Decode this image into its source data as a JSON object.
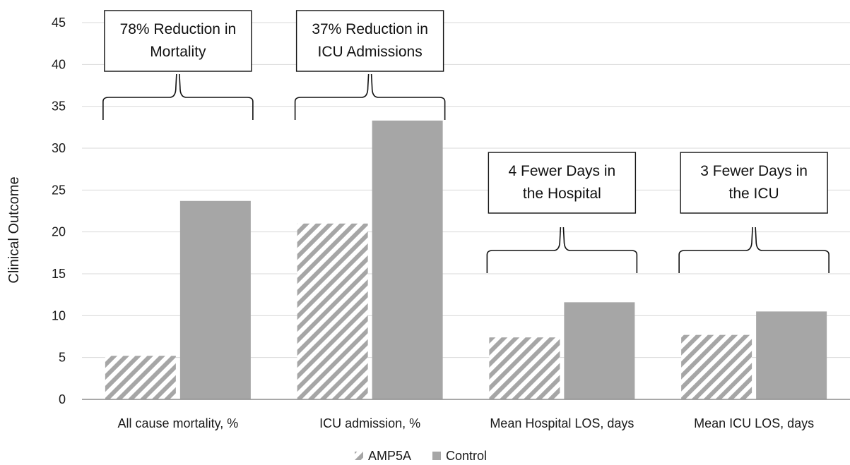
{
  "chart_data": {
    "type": "bar",
    "title": "",
    "xlabel": "",
    "ylabel": "Clinical Outcome",
    "ylim": [
      0,
      45
    ],
    "yticks": [
      0,
      5,
      10,
      15,
      20,
      25,
      30,
      35,
      40,
      45
    ],
    "grid": true,
    "legend_position": "bottom",
    "categories": [
      "All cause mortality, %",
      "ICU admission, %",
      "Mean Hospital LOS, days",
      "Mean ICU LOS, days"
    ],
    "series": [
      {
        "name": "AMP5A",
        "values": [
          5.2,
          21.0,
          7.4,
          7.7
        ],
        "color": "#a6a6a6",
        "pattern": "diagonal-stripes"
      },
      {
        "name": "Control",
        "values": [
          23.7,
          33.3,
          11.6,
          10.5
        ],
        "color": "#a6a6a6",
        "pattern": "solid"
      }
    ],
    "annotations": [
      {
        "category_index": 0,
        "lines": [
          "78% Reduction in",
          "Mortality"
        ]
      },
      {
        "category_index": 1,
        "lines": [
          "37% Reduction in",
          "ICU Admissions"
        ]
      },
      {
        "category_index": 2,
        "lines": [
          "4 Fewer Days in",
          "the Hospital"
        ]
      },
      {
        "category_index": 3,
        "lines": [
          "3 Fewer Days in",
          "the ICU"
        ]
      }
    ]
  }
}
